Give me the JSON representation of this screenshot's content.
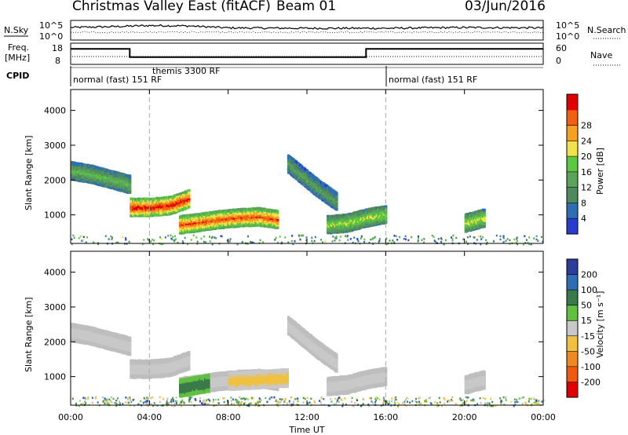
{
  "header": {
    "title": "Christmas Valley East (fitACF)",
    "beam": "Beam 01",
    "date": "03/Jun/2016"
  },
  "noise_panel": {
    "left_label": "N.Sky",
    "right_label": "N.Search",
    "left_ticks": [
      "10^5",
      "10^0"
    ],
    "right_ticks": [
      "10^5",
      "10^0"
    ]
  },
  "freq_panel": {
    "left_label_1": "Freq.",
    "left_label_2": "[MHz]",
    "right_label": "Nave",
    "left_ticks": [
      "18",
      "8"
    ],
    "right_ticks": [
      "60",
      "0"
    ]
  },
  "cpid_panel": {
    "label": "CPID",
    "segments": [
      {
        "text": "normal (fast) 151 RF",
        "start_hour": 0
      },
      {
        "text": "themis 3300 RF",
        "start_hour": 4
      },
      {
        "text": "normal (fast) 151 RF",
        "start_hour": 16
      }
    ]
  },
  "range_axis": {
    "label": "Slant Range [km]",
    "ticks": [
      "1000",
      "2000",
      "3000",
      "4000"
    ]
  },
  "time_axis": {
    "label": "Time UT",
    "ticks": [
      "00:00",
      "04:00",
      "08:00",
      "12:00",
      "16:00",
      "20:00",
      "00:00"
    ]
  },
  "power_colorbar": {
    "label": "Power [dB]",
    "ticks": [
      "4",
      "8",
      "12",
      "16",
      "20",
      "24",
      "28"
    ]
  },
  "velocity_colorbar": {
    "label": "Velocity [m s⁻¹]",
    "ticks": [
      "200",
      "100",
      "50",
      "15",
      "-15",
      "-50",
      "-100",
      "-200"
    ]
  },
  "colors": {
    "power_scale": [
      "#2a3cd0",
      "#2e6fb4",
      "#4f8a5e",
      "#5aa35a",
      "#5cc840",
      "#f0e24a",
      "#f5a020",
      "#f06010",
      "#e00000"
    ],
    "velocity_scale": [
      "#2c3c9a",
      "#2e6fb4",
      "#3a7a4a",
      "#60c040",
      "#c8c8c8",
      "#f0c040",
      "#f08a20",
      "#f05a10",
      "#e00000"
    ],
    "ground_scatter": "#bebebe"
  },
  "chart_data": {
    "type": "heatmap",
    "x_unit": "hour UT",
    "xlim": [
      0,
      24
    ],
    "ylim": [
      180,
      4600
    ],
    "mode_boundaries_hours": [
      4,
      16
    ],
    "frequency_mhz": {
      "hours": [
        0,
        3,
        3,
        15,
        15,
        24
      ],
      "values": [
        16,
        16,
        11,
        11,
        16,
        16
      ]
    },
    "noise_sky_log10": {
      "hours": [
        0,
        2,
        4,
        6,
        8,
        12,
        16,
        20,
        24
      ],
      "values": [
        3.2,
        3.4,
        3.7,
        3.6,
        3.1,
        3.0,
        3.0,
        3.2,
        3.1
      ]
    },
    "power_features": [
      {
        "hours": [
          0.0,
          1.0,
          2.0,
          3.0
        ],
        "range_km": [
          2300,
          2200,
          2050,
          1900
        ],
        "power_db": 14
      },
      {
        "hours": [
          3.0,
          4.0,
          5.0,
          6.0
        ],
        "range_km": [
          1250,
          1250,
          1300,
          1500
        ],
        "power_db": 27
      },
      {
        "hours": [
          5.5,
          6.5,
          7.5,
          8.5,
          9.5,
          10.5
        ],
        "range_km": [
          750,
          820,
          900,
          950,
          980,
          900
        ],
        "power_db": 25
      },
      {
        "hours": [
          11.0,
          12.5,
          13.5
        ],
        "range_km": [
          2500,
          1800,
          1400
        ],
        "power_db": 12
      },
      {
        "hours": [
          13.0,
          14.0,
          15.0,
          16.0
        ],
        "range_km": [
          750,
          800,
          950,
          1050
        ],
        "power_db": 17
      },
      {
        "hours": [
          20.0,
          21.0
        ],
        "range_km": [
          800,
          950
        ],
        "power_db": 18
      }
    ],
    "velocity_features": [
      {
        "hours": [
          5.5,
          7.0
        ],
        "range_km": [
          700,
          850
        ],
        "velocity_ms": 40
      },
      {
        "hours": [
          8.0,
          11.0
        ],
        "range_km": [
          900,
          1000
        ],
        "velocity_ms": -20
      }
    ]
  }
}
